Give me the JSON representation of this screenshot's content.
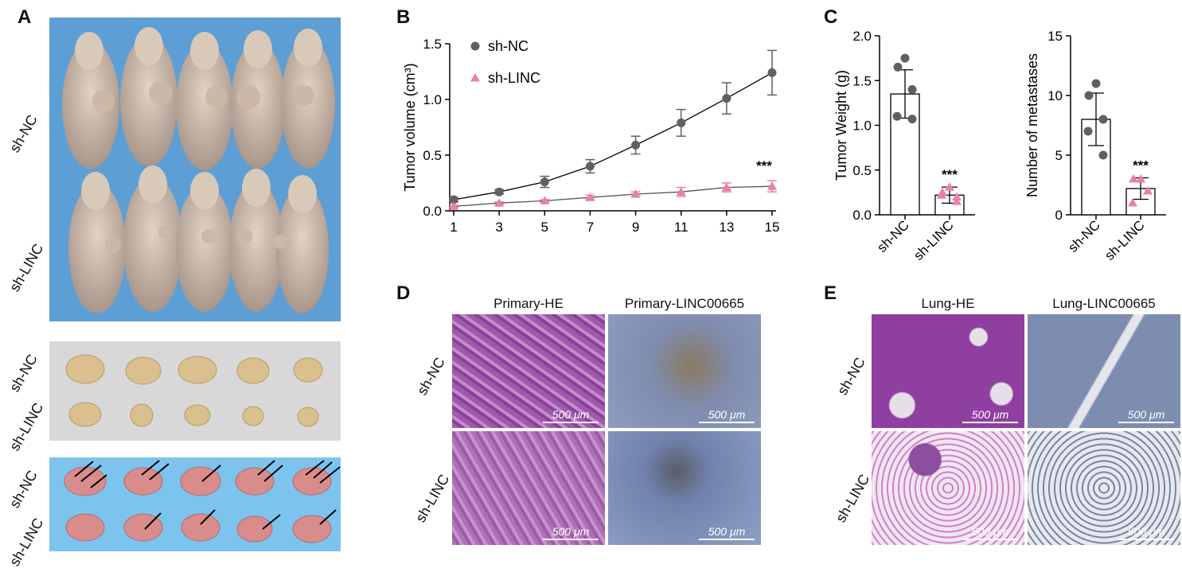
{
  "panels": {
    "A": {
      "letter": "A",
      "mice_rows": [
        "sh-NC",
        "sh-LINC"
      ],
      "tumor_rows": [
        "sh-NC",
        "sh-LINC"
      ],
      "lung_rows": [
        "sh-NC",
        "sh-LINC"
      ]
    },
    "B": {
      "letter": "B"
    },
    "C": {
      "letter": "C"
    },
    "D": {
      "letter": "D",
      "col_primary_he": "Primary-HE",
      "col_primary_linc": "Primary-LINC00665",
      "row_nc": "sh-NC",
      "row_linc": "sh-LINC",
      "scale": "500 μm"
    },
    "E": {
      "letter": "E",
      "col_lung_he": "Lung-HE",
      "col_lung_linc": "Lung-LINC00665",
      "row_nc": "sh-NC",
      "row_linc": "sh-LINC",
      "scale": "500 μm"
    }
  },
  "colors": {
    "sh_nc": "#606060",
    "sh_linc": "#e97fac",
    "photo_bg_blue": "#5d9fd4",
    "he_stain": "#9b4fa8",
    "ihc_blue": "#7c8fb5"
  },
  "chart_data": [
    {
      "type": "line",
      "title": "",
      "xlabel": "",
      "ylabel": "Tumor volume (cm³)",
      "x": [
        1,
        3,
        5,
        7,
        9,
        11,
        13,
        15
      ],
      "xlim": [
        1,
        15
      ],
      "ylim": [
        0,
        1.5
      ],
      "yticks": [
        "0.0",
        "0.5",
        "1.0",
        "1.5"
      ],
      "series": [
        {
          "name": "sh-NC",
          "marker": "circle",
          "values": [
            0.1,
            0.17,
            0.26,
            0.4,
            0.59,
            0.79,
            1.01,
            1.24
          ],
          "errors": [
            0.02,
            0.02,
            0.05,
            0.06,
            0.08,
            0.12,
            0.14,
            0.2
          ]
        },
        {
          "name": "sh-LINC",
          "marker": "triangle",
          "values": [
            0.04,
            0.07,
            0.09,
            0.12,
            0.15,
            0.17,
            0.21,
            0.22
          ],
          "errors": [
            0.01,
            0.01,
            0.01,
            0.02,
            0.02,
            0.04,
            0.04,
            0.05
          ]
        }
      ],
      "legend_position": "top-left",
      "annotation": "***"
    },
    {
      "type": "bar",
      "ylabel": "Tumor Weight (g)",
      "categories": [
        "sh-NC",
        "sh-LINC"
      ],
      "values": [
        1.35,
        0.22
      ],
      "errors": [
        0.27,
        0.09
      ],
      "points": [
        [
          1.75,
          1.65,
          1.4,
          1.1,
          1.07
        ],
        [
          0.31,
          0.25,
          0.15,
          0.22,
          0.2
        ]
      ],
      "ylim": [
        0,
        2.0
      ],
      "yticks": [
        "0.0",
        "0.5",
        "1.0",
        "1.5",
        "2.0"
      ],
      "annotation": "***"
    },
    {
      "type": "bar",
      "ylabel": "Number of metastases",
      "categories": [
        "sh-NC",
        "sh-LINC"
      ],
      "values": [
        8,
        2.2
      ],
      "errors": [
        2.2,
        0.9
      ],
      "points": [
        [
          11,
          10,
          8,
          7,
          5
        ],
        [
          3,
          3,
          2,
          1,
          2
        ]
      ],
      "ylim": [
        0,
        15
      ],
      "yticks": [
        "0",
        "5",
        "10",
        "15"
      ],
      "annotation": "***"
    }
  ]
}
